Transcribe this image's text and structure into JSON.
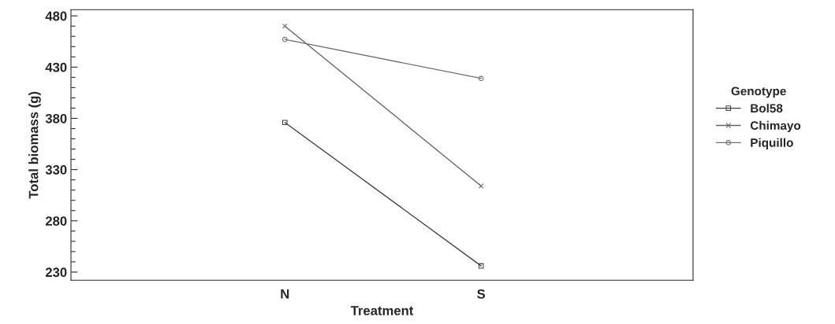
{
  "chart_data": {
    "type": "line",
    "xlabel": "Treatment",
    "ylabel": "Total biomass (g)",
    "legend_title": "Genotype",
    "legend": "right",
    "grid": false,
    "categories": [
      "N",
      "S"
    ],
    "ylim": [
      222,
      486
    ],
    "yticks": [
      230,
      {
        "value": 240,
        "label": null
      },
      {
        "value": 250,
        "label": null
      },
      {
        "value": 260,
        "label": null
      },
      {
        "value": 270,
        "label": null
      },
      280,
      {
        "value": 290,
        "label": null
      },
      {
        "value": 300,
        "label": null
      },
      {
        "value": 310,
        "label": null
      },
      {
        "value": 320,
        "label": null
      },
      330,
      {
        "value": 340,
        "label": null
      },
      {
        "value": 350,
        "label": null
      },
      {
        "value": 360,
        "label": null
      },
      {
        "value": 370,
        "label": null
      },
      380,
      {
        "value": 390,
        "label": null
      },
      {
        "value": 400,
        "label": null
      },
      {
        "value": 410,
        "label": null
      },
      {
        "value": 420,
        "label": null
      },
      430,
      {
        "value": 440,
        "label": null
      },
      {
        "value": 450,
        "label": null
      },
      {
        "value": 460,
        "label": null
      },
      {
        "value": 470,
        "label": null
      },
      480
    ],
    "series": [
      {
        "name": "Bol58",
        "color": "#404040",
        "marker": "square",
        "values": [
          376,
          236
        ]
      },
      {
        "name": "Chimayo",
        "color": "#666666",
        "marker": "cross",
        "values": [
          470,
          314
        ]
      },
      {
        "name": "Piquillo",
        "color": "#707070",
        "marker": "circle",
        "values": [
          457,
          419
        ]
      }
    ]
  }
}
